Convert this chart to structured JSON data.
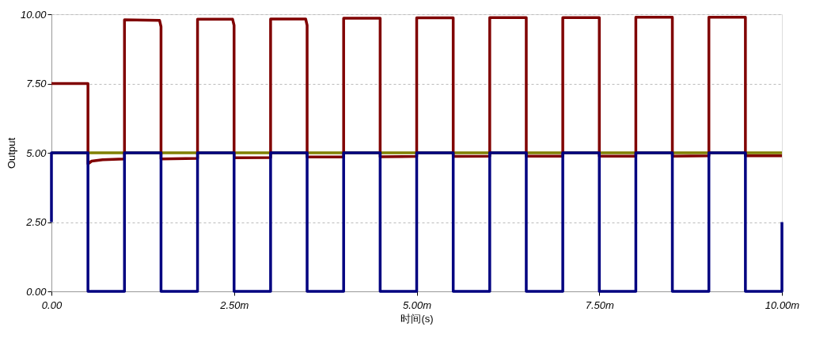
{
  "chart_data": {
    "type": "line",
    "xlabel": "时间(s)",
    "ylabel": "Output",
    "grid": "y",
    "line_style": "solid",
    "marker": "none",
    "xlim": [
      0,
      10
    ],
    "xticks": [
      {
        "value": 0,
        "label": "0.00"
      },
      {
        "value": 2.5,
        "label": "2.50m"
      },
      {
        "value": 5,
        "label": "5.00m"
      },
      {
        "value": 7.5,
        "label": "7.50m"
      },
      {
        "value": 10,
        "label": "10.00m"
      }
    ],
    "ylim": [
      0,
      10
    ],
    "yticks": [
      {
        "value": 0,
        "label": "0.00"
      },
      {
        "value": 2.5,
        "label": "2.50"
      },
      {
        "value": 5,
        "label": "5.00"
      },
      {
        "value": 7.5,
        "label": "7.50"
      },
      {
        "value": 10,
        "label": "10.00"
      }
    ],
    "series": [
      {
        "color": "#808000",
        "x": [
          0,
          10
        ],
        "values": [
          5,
          5
        ]
      },
      {
        "color": "#800000",
        "x": [
          0,
          0.5,
          0.5,
          0.55,
          0.7,
          1,
          1,
          1.48,
          1.5,
          1.5,
          2,
          2,
          2.48,
          2.5,
          2.5,
          3,
          3,
          3.48,
          3.5,
          3.5,
          4,
          4,
          4.5,
          4.5,
          5,
          5,
          5.5,
          5.5,
          6,
          6,
          6.5,
          6.5,
          7,
          7,
          7.5,
          7.5,
          8,
          8,
          8.5,
          8.5,
          9,
          9,
          9.5,
          9.5,
          10
        ],
        "values": [
          7.5,
          7.5,
          4.6,
          4.7,
          4.75,
          4.78,
          9.8,
          9.78,
          9.55,
          4.78,
          4.8,
          9.82,
          9.82,
          9.6,
          4.82,
          4.83,
          9.83,
          9.83,
          9.6,
          4.85,
          4.85,
          9.86,
          9.86,
          4.86,
          4.87,
          9.87,
          9.87,
          4.87,
          4.88,
          9.88,
          9.88,
          4.88,
          4.88,
          9.88,
          9.88,
          4.88,
          4.88,
          9.89,
          9.89,
          4.88,
          4.89,
          9.89,
          9.89,
          4.89,
          4.89
        ]
      },
      {
        "color": "#000080",
        "x": [
          0,
          0,
          0.5,
          0.5,
          1,
          1,
          1.5,
          1.5,
          2,
          2,
          2.5,
          2.5,
          3,
          3,
          3.5,
          3.5,
          4,
          4,
          4.5,
          4.5,
          5,
          5,
          5.5,
          5.5,
          6,
          6,
          6.5,
          6.5,
          7,
          7,
          7.5,
          7.5,
          8,
          8,
          8.5,
          8.5,
          9,
          9,
          9.5,
          9.5,
          10,
          10
        ],
        "values": [
          2.5,
          5,
          5,
          0,
          0,
          5,
          5,
          0,
          0,
          5,
          5,
          0,
          0,
          5,
          5,
          0,
          0,
          5,
          5,
          0,
          0,
          5,
          5,
          0,
          0,
          5,
          5,
          0,
          0,
          5,
          5,
          0,
          0,
          5,
          5,
          0,
          0,
          5,
          5,
          0,
          0,
          2.5
        ]
      }
    ]
  }
}
